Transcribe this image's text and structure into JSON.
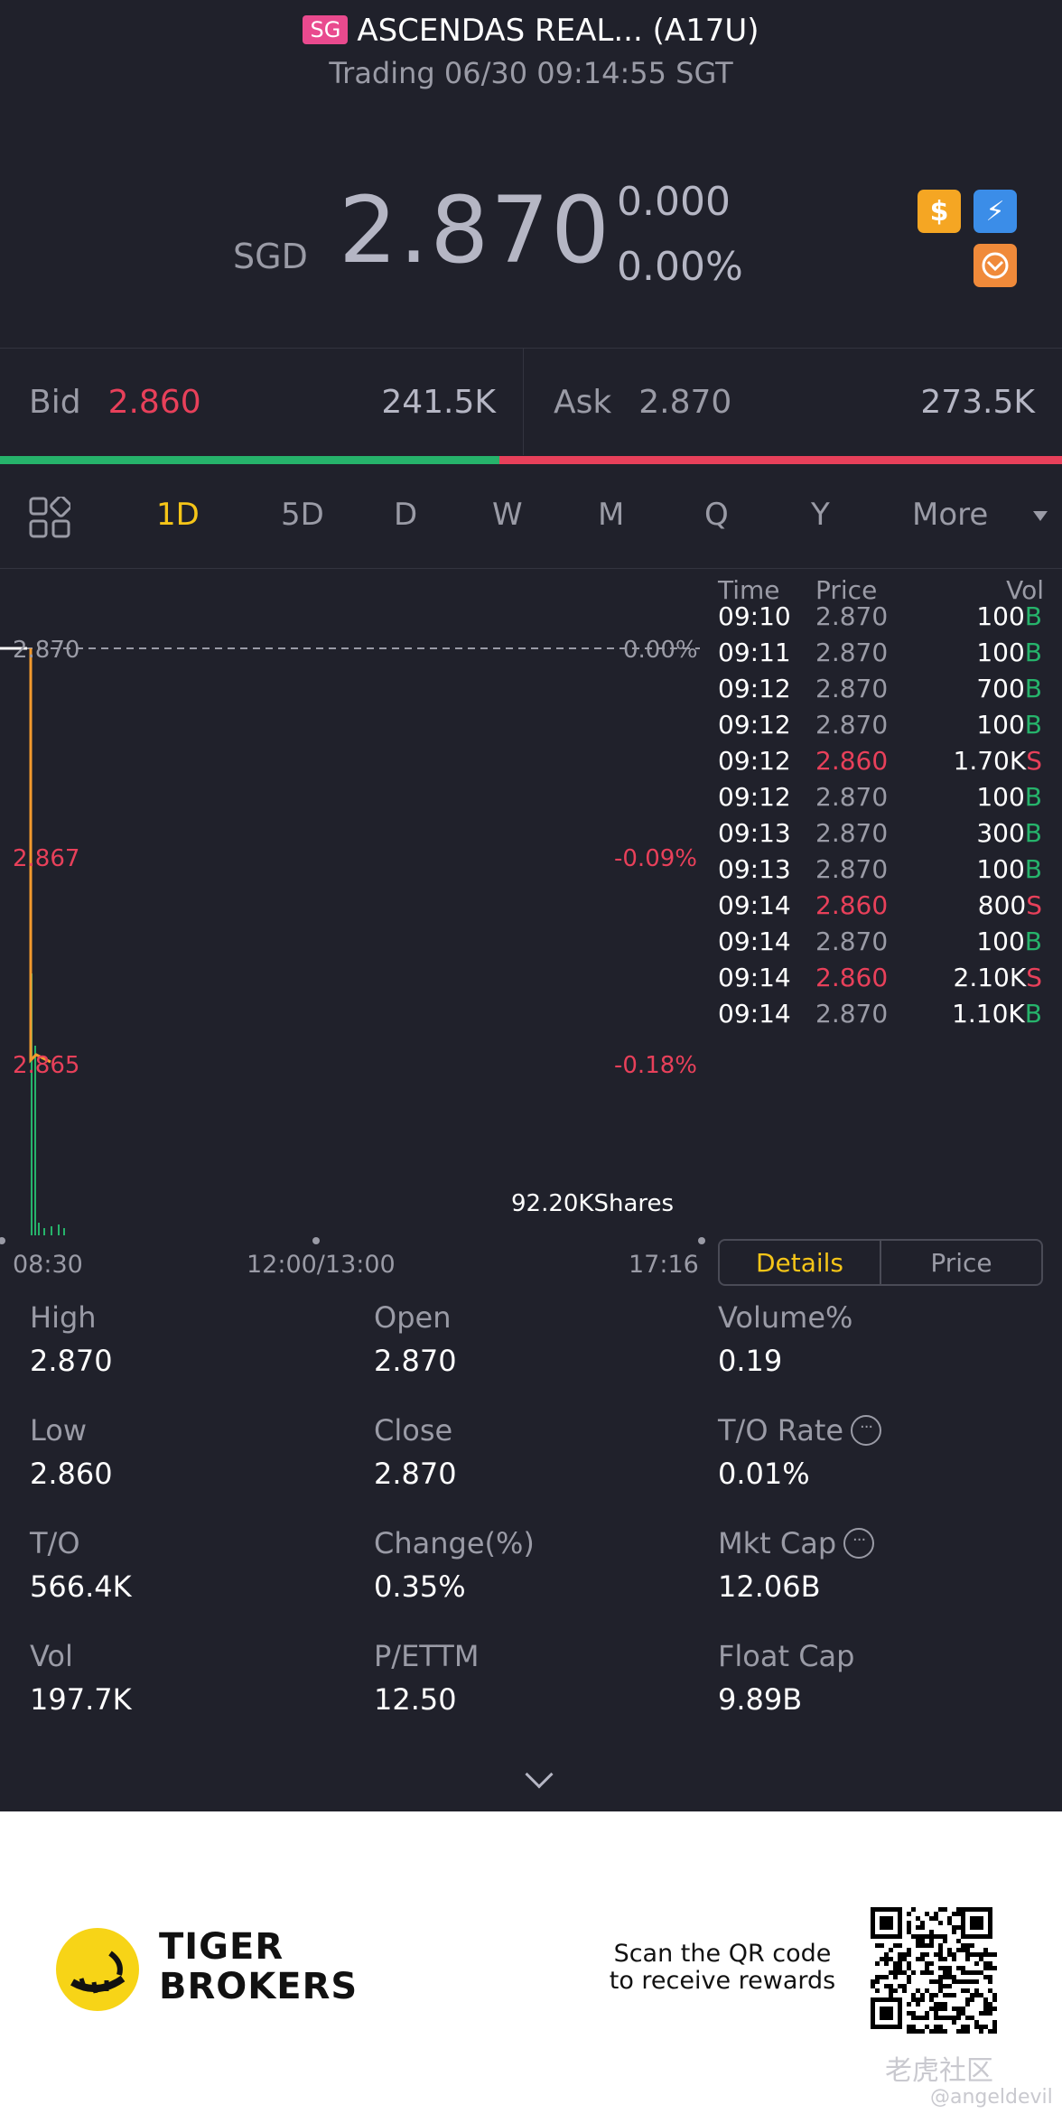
{
  "header": {
    "market_badge": "SG",
    "title": "ASCENDAS REAL... (A17U)",
    "status": "Trading 06/30 09:14:55 SGT"
  },
  "quote": {
    "currency": "SGD",
    "price": "2.870",
    "change": "0.000",
    "change_pct": "0.00%",
    "icons": [
      "dollar-icon",
      "flash-icon",
      "orange-badge-icon"
    ],
    "icon_labels": {
      "dollar": "$",
      "flash": "⚡"
    }
  },
  "bid_ask": {
    "bid_label": "Bid",
    "bid_price": "2.860",
    "bid_size": "241.5K",
    "ask_label": "Ask",
    "ask_price": "2.870",
    "ask_size": "273.5K",
    "bid_ratio": 0.47
  },
  "tabs": {
    "items": [
      "1D",
      "5D",
      "D",
      "W",
      "M",
      "Q",
      "Y",
      "More"
    ],
    "active": "1D"
  },
  "chart_data": {
    "type": "line",
    "title": "",
    "xlabel": "",
    "ylabel": "",
    "x_ticks": [
      "08:30",
      "12:00/13:00",
      "17:16"
    ],
    "y_ticks_left": [
      "2.870",
      "2.867",
      "2.865"
    ],
    "y_ticks_right": [
      "0.00%",
      "-0.09%",
      "-0.18%"
    ],
    "ylim": [
      2.862,
      2.872
    ],
    "reference_price": 2.87,
    "series": [
      {
        "values": [
          2.87,
          2.865,
          2.865
        ]
      }
    ],
    "volume_label": "92.20KShares"
  },
  "trades": {
    "headers": {
      "time": "Time",
      "price": "Price",
      "vol": "Vol"
    },
    "rows": [
      {
        "time": "09:10",
        "price": "2.870",
        "vol": "100",
        "side": "B",
        "dir": "flat"
      },
      {
        "time": "09:11",
        "price": "2.870",
        "vol": "100",
        "side": "B",
        "dir": "flat"
      },
      {
        "time": "09:12",
        "price": "2.870",
        "vol": "700",
        "side": "B",
        "dir": "flat"
      },
      {
        "time": "09:12",
        "price": "2.870",
        "vol": "100",
        "side": "B",
        "dir": "flat"
      },
      {
        "time": "09:12",
        "price": "2.860",
        "vol": "1.70K",
        "side": "S",
        "dir": "down"
      },
      {
        "time": "09:12",
        "price": "2.870",
        "vol": "100",
        "side": "B",
        "dir": "flat"
      },
      {
        "time": "09:13",
        "price": "2.870",
        "vol": "300",
        "side": "B",
        "dir": "flat"
      },
      {
        "time": "09:13",
        "price": "2.870",
        "vol": "100",
        "side": "B",
        "dir": "flat"
      },
      {
        "time": "09:14",
        "price": "2.860",
        "vol": "800",
        "side": "S",
        "dir": "down"
      },
      {
        "time": "09:14",
        "price": "2.870",
        "vol": "100",
        "side": "B",
        "dir": "flat"
      },
      {
        "time": "09:14",
        "price": "2.860",
        "vol": "2.10K",
        "side": "S",
        "dir": "down"
      },
      {
        "time": "09:14",
        "price": "2.870",
        "vol": "1.10K",
        "side": "B",
        "dir": "flat"
      }
    ]
  },
  "segment": {
    "details": "Details",
    "price": "Price"
  },
  "stats": [
    {
      "label": "High",
      "value": "2.870",
      "info": false
    },
    {
      "label": "Open",
      "value": "2.870",
      "info": false
    },
    {
      "label": "Volume%",
      "value": "0.19",
      "info": false
    },
    {
      "label": "Low",
      "value": "2.860",
      "info": false
    },
    {
      "label": "Close",
      "value": "2.870",
      "info": false
    },
    {
      "label": "T/O Rate",
      "value": "0.01%",
      "info": true
    },
    {
      "label": "T/O",
      "value": "566.4K",
      "info": false
    },
    {
      "label": "Change(%)",
      "value": "0.35%",
      "info": false
    },
    {
      "label": "Mkt Cap",
      "value": "12.06B",
      "info": true
    },
    {
      "label": "Vol",
      "value": "197.7K",
      "info": false
    },
    {
      "label": "P/ETTM",
      "value": "12.50",
      "info": false
    },
    {
      "label": "Float Cap",
      "value": "9.89B",
      "info": false
    }
  ],
  "footer": {
    "brand_line1": "TIGER",
    "brand_line2": "BROKERS",
    "scan_line1": "Scan the QR code",
    "scan_line2": "to receive rewards",
    "watermark_cn": "老虎社区",
    "watermark_user": "@angeldevil"
  }
}
